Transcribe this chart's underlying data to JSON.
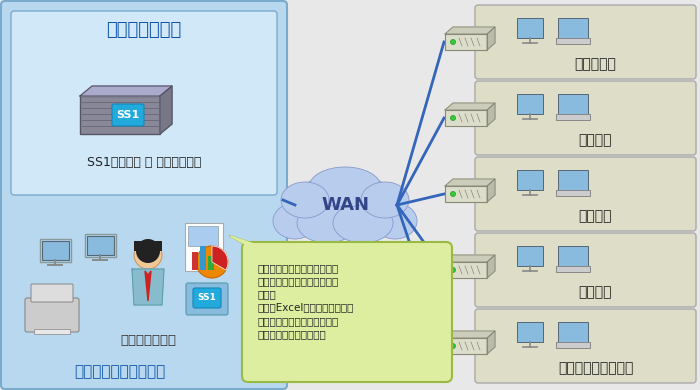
{
  "bg_color": "#e8e8e8",
  "left_panel_color": "#b8d8f0",
  "left_panel_border": "#7aabcc",
  "server_room_color": "#d0e8f8",
  "server_room_border": "#7aabcc",
  "server_room_label": "サーバールーム",
  "server_label": "SS1サーバー 兼 収集サーバー",
  "console_label": "管理コンソール",
  "headquarters_label": "本社　情報システム部",
  "wan_label": "WAN",
  "wan_color": "#b8ccee",
  "wan_border": "#8899cc",
  "branch_labels": [
    "北海道支店",
    "東北支店",
    "関西支店",
    "九州支店",
    "サテライトオフィス"
  ],
  "callout_text": "１サーバー、１パッケージで\n全資産を把握・監視・管理が\n可能。\n情報をExcelへエクスポートし\n経営層、各部門からの至急で\n不定形な要求にも対応。",
  "callout_bg": "#ddeea0",
  "callout_border": "#99bb44",
  "line_color": "#3366bb",
  "right_panel_color": "#ddddc8",
  "right_panel_border": "#aaaaaa",
  "ss1_color": "#22aadd",
  "ss1_border": "#1188bb"
}
